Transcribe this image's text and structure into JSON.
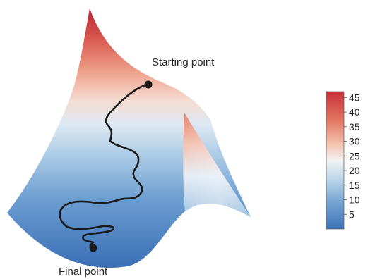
{
  "labels": {
    "start": "Starting point",
    "end": "Final point"
  },
  "colorbar": {
    "ticks": [
      "45",
      "40",
      "35",
      "30",
      "25",
      "20",
      "15",
      "10",
      "5"
    ],
    "range": [
      0,
      47
    ],
    "low_color": "#3d73b9",
    "mid_color": "#f2f2f2",
    "high_color": "#c8303a"
  },
  "colors": {
    "path": "#1a1a1a",
    "surface_low": "#3d73b9",
    "surface_high": "#c8303a"
  }
}
